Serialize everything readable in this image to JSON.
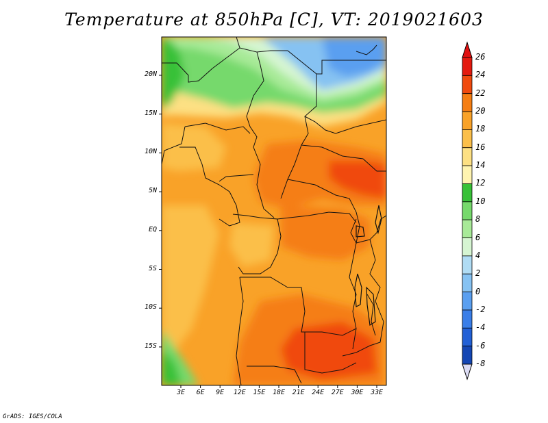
{
  "title": "Temperature at 850hPa [C], VT: 2019021603",
  "credit": "GrADS: IGES/COLA",
  "map": {
    "lat_labels": [
      "20N",
      "15N",
      "10N",
      "5N",
      "EQ",
      "5S",
      "10S",
      "15S"
    ],
    "lon_labels": [
      "3E",
      "6E",
      "9E",
      "12E",
      "15E",
      "18E",
      "21E",
      "24E",
      "27E",
      "30E",
      "33E"
    ],
    "lat_range": [
      -20,
      25
    ],
    "lon_range": [
      0,
      35
    ]
  },
  "colorbar": {
    "levels": [
      "26",
      "24",
      "22",
      "20",
      "18",
      "16",
      "14",
      "12",
      "10",
      "8",
      "6",
      "4",
      "2",
      "0",
      "-2",
      "-4",
      "-6",
      "-8"
    ],
    "colors": [
      "#e41a0f",
      "#f04a0e",
      "#f57e13",
      "#f9a228",
      "#fbbf4a",
      "#fde083",
      "#fff4b0",
      "#38c138",
      "#76d96c",
      "#a8ea98",
      "#d6f5d2",
      "#b0dcf4",
      "#86c2f2",
      "#5a9ff0",
      "#3a7ee8",
      "#2260d6",
      "#1446b4",
      "#0a1e86"
    ],
    "end_colors": {
      "top": "#e01010",
      "bottom": "#dcdcf4"
    }
  }
}
